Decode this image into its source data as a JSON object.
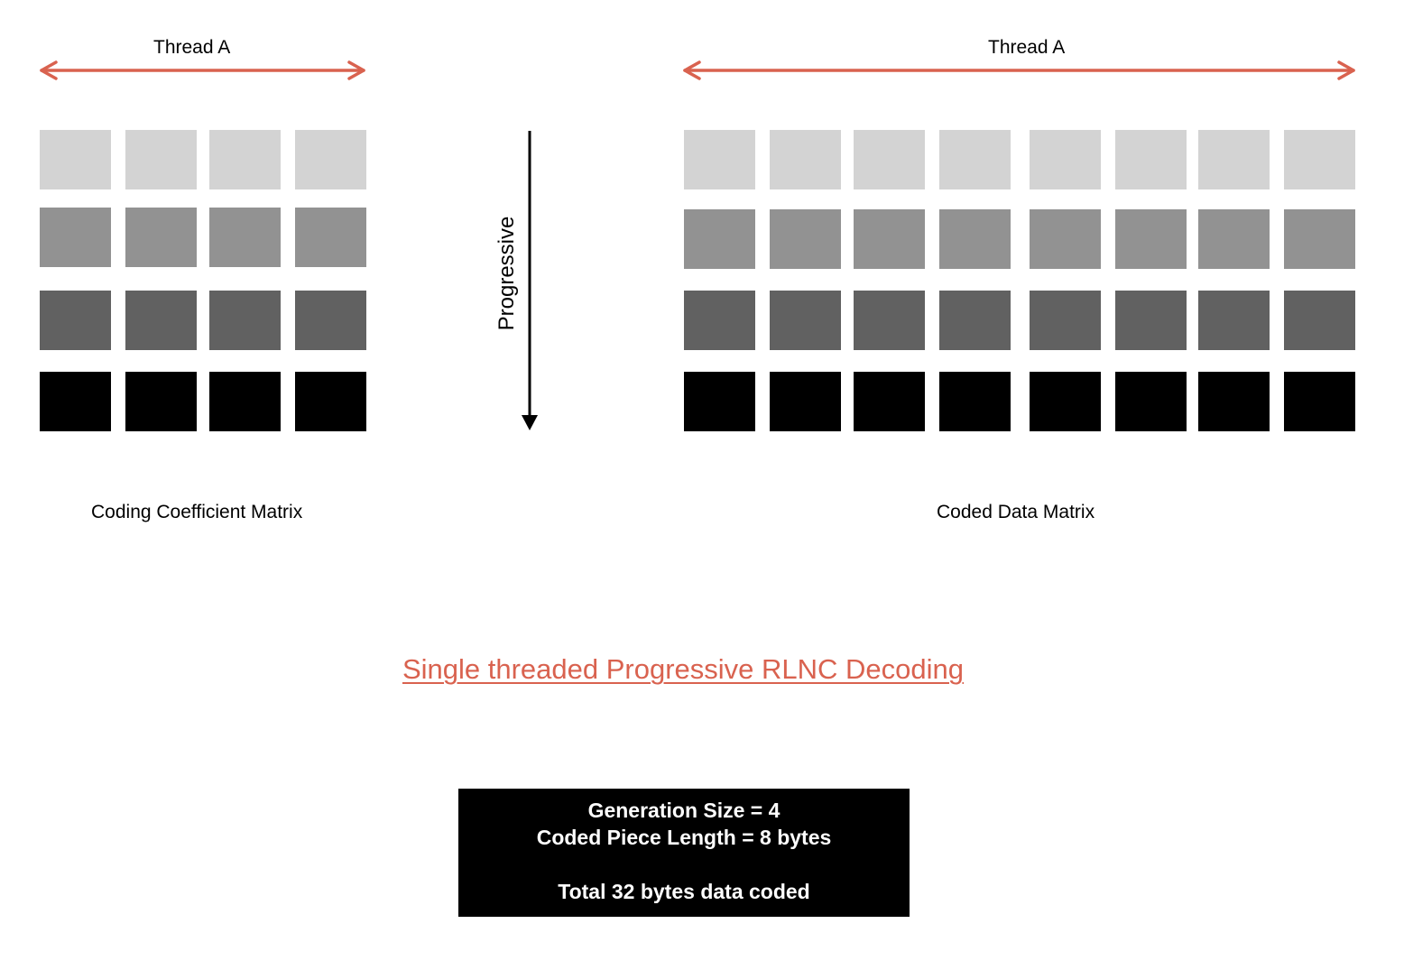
{
  "colors": {
    "accent": "#d9624f",
    "row_shades": [
      "#d3d3d3",
      "#929292",
      "#616161",
      "#000000"
    ],
    "info_bg": "#000000",
    "info_text": "#ffffff"
  },
  "left_matrix": {
    "thread_label": "Thread A",
    "caption": "Coding Coefficient Matrix",
    "rows": 4,
    "cols": 4
  },
  "right_matrix": {
    "thread_label": "Thread A",
    "caption": "Coded Data Matrix",
    "rows": 4,
    "cols": 8
  },
  "progress_arrow": {
    "label": "Progressive"
  },
  "title": "Single threaded Progressive RLNC Decoding",
  "info_box": {
    "lines": [
      "Generation Size = 4",
      "Coded Piece Length = 8 bytes",
      "",
      "Total 32 bytes data coded"
    ]
  }
}
